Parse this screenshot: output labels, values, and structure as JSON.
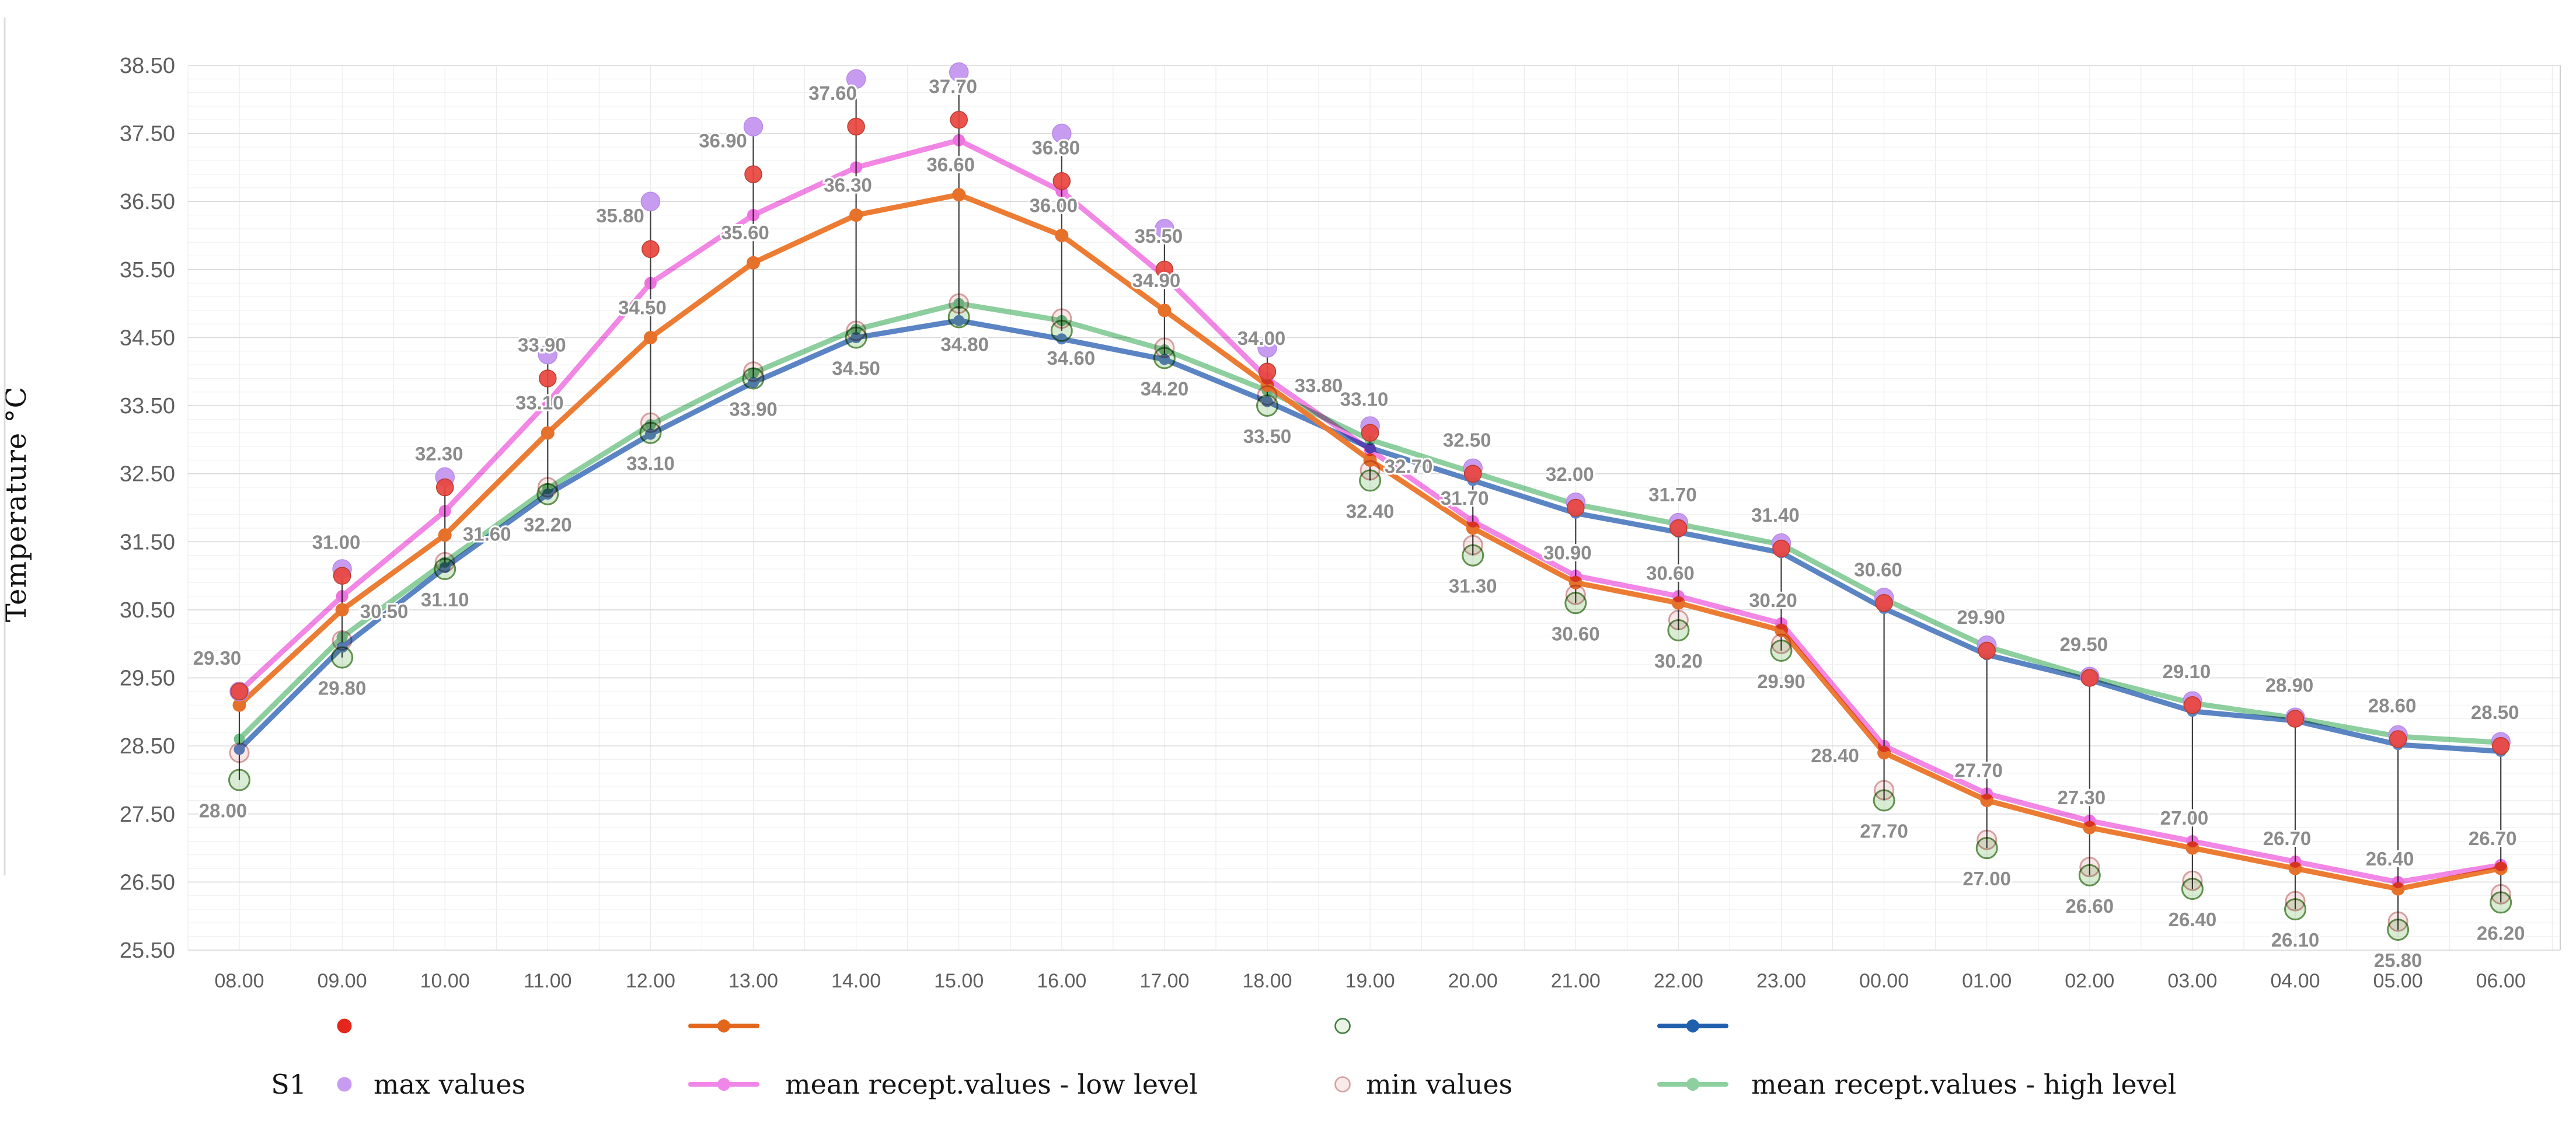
{
  "window": {
    "background": "#ffffff"
  },
  "chart_data": {
    "type": "line",
    "title": "",
    "xlabel": "",
    "ylabel": "Temperature °C",
    "ylim": [
      25.5,
      38.5
    ],
    "ytick_step": 1.0,
    "ytick_minor_step": 0.2,
    "grid": "both",
    "legend_position": "bottom",
    "yticks": [
      "38.50",
      "37.50",
      "36.50",
      "35.50",
      "34.50",
      "33.50",
      "32.50",
      "31.50",
      "30.50",
      "29.50",
      "28.50",
      "27.50",
      "26.50",
      "25.50"
    ],
    "categories": [
      "08.00",
      "09.00",
      "10.00",
      "11.00",
      "12.00",
      "13.00",
      "14.00",
      "15.00",
      "16.00",
      "17.00",
      "18.00",
      "19.00",
      "20.00",
      "21.00",
      "22.00",
      "23.00",
      "00.00",
      "01.00",
      "02.00",
      "03.00",
      "04.00",
      "05.00",
      "06.00"
    ],
    "series": [
      {
        "id": "s1_max",
        "group": "S1",
        "name": "max values",
        "kind": "points",
        "marker": "circle-filled",
        "color": "#c79cf0",
        "stroke": "#b78ae6",
        "values": [
          29.3,
          31.1,
          32.45,
          34.25,
          36.5,
          37.6,
          38.3,
          38.4,
          37.5,
          36.1,
          34.35,
          33.2,
          32.58,
          32.08,
          31.78,
          31.48,
          30.68,
          29.98,
          29.52,
          29.16,
          28.92,
          28.66,
          28.56
        ]
      },
      {
        "id": "s2_max",
        "group": "S2",
        "name": "max values",
        "kind": "points",
        "marker": "circle-filled",
        "color": "#e8453e",
        "stroke": "#b93a2e",
        "labels": "top",
        "values": [
          29.3,
          31.0,
          32.3,
          33.9,
          35.8,
          36.9,
          37.6,
          37.7,
          36.8,
          35.5,
          34.0,
          33.1,
          32.5,
          32.0,
          31.7,
          31.4,
          30.6,
          29.9,
          29.5,
          29.1,
          28.9,
          28.6,
          28.5
        ]
      },
      {
        "id": "s1_mean_low",
        "group": "S1",
        "name": "mean recept.values - low level",
        "kind": "line",
        "color": "#f287e6",
        "dot": "#ee72e0",
        "values": [
          29.3,
          30.7,
          31.95,
          33.55,
          35.3,
          36.3,
          37.0,
          37.4,
          36.65,
          35.4,
          33.9,
          32.85,
          31.8,
          31.0,
          30.7,
          30.3,
          28.5,
          27.8,
          27.4,
          27.1,
          26.8,
          26.5,
          26.75
        ]
      },
      {
        "id": "s2_mean_low",
        "group": "S2",
        "name": "mean recept.values - low level",
        "kind": "line",
        "color": "#ec7c33",
        "dot": "#e6712a",
        "labels": "mid",
        "values": [
          29.1,
          30.5,
          31.6,
          33.1,
          34.5,
          35.6,
          36.3,
          36.6,
          36.0,
          34.9,
          33.8,
          32.7,
          31.7,
          30.9,
          30.6,
          30.2,
          28.4,
          27.7,
          27.3,
          27.0,
          26.7,
          26.4,
          26.7
        ]
      },
      {
        "id": "s1_min",
        "group": "S1",
        "name": "min values",
        "kind": "points",
        "marker": "circle-open",
        "color": "#d6a0a0",
        "fill": "#f9e7e7",
        "values": [
          28.4,
          30.05,
          31.2,
          32.3,
          33.25,
          34.0,
          34.6,
          35.0,
          34.78,
          34.35,
          33.65,
          32.55,
          31.45,
          30.72,
          30.35,
          30.0,
          27.85,
          27.12,
          26.72,
          26.52,
          26.22,
          25.92,
          26.32
        ]
      },
      {
        "id": "s2_min",
        "group": "S2",
        "name": "min values",
        "kind": "points",
        "marker": "circle-open",
        "color": "#61924f",
        "fill": "#d7ebd2",
        "labels": "bottom",
        "values": [
          28.0,
          29.8,
          31.1,
          32.2,
          33.1,
          33.9,
          34.5,
          34.8,
          34.6,
          34.2,
          33.5,
          32.4,
          31.3,
          30.6,
          30.2,
          29.9,
          27.7,
          27.0,
          26.6,
          26.4,
          26.1,
          25.8,
          26.2
        ]
      },
      {
        "id": "s1_mean_high",
        "group": "S1",
        "name": "mean recept.values - high level",
        "kind": "line",
        "color": "#8ecf9f",
        "dot": "#74c08a",
        "values": [
          28.6,
          30.1,
          31.2,
          32.28,
          33.22,
          33.98,
          34.62,
          35.0,
          34.75,
          34.32,
          33.72,
          33.0,
          32.52,
          32.05,
          31.76,
          31.46,
          30.66,
          29.96,
          29.51,
          29.13,
          28.91,
          28.64,
          28.55
        ]
      },
      {
        "id": "s2_mean_high",
        "group": "S2",
        "name": "mean recept.values - high level",
        "kind": "line",
        "color": "#5b84c4",
        "dot": "#5b84c4",
        "values": [
          28.45,
          29.95,
          31.12,
          32.2,
          33.08,
          33.84,
          34.5,
          34.75,
          34.48,
          34.18,
          33.56,
          32.88,
          32.4,
          31.92,
          31.64,
          31.34,
          30.52,
          29.84,
          29.47,
          29.01,
          28.87,
          28.52,
          28.42
        ]
      }
    ],
    "point_labels": {
      "top": [
        "29.30",
        "31.00",
        "32.30",
        "33.90",
        "35.80",
        "36.90",
        "37.60",
        "37.70",
        "36.80",
        "35.50",
        "34.00",
        "33.10",
        "32.50",
        "32.00",
        "31.70",
        "31.40",
        "30.60",
        "29.90",
        "29.50",
        "29.10",
        "28.90",
        "28.60",
        "28.50"
      ],
      "mid": [
        "",
        "30.50",
        "31.60",
        "33.10",
        "34.50",
        "35.60",
        "36.30",
        "36.60",
        "36.00",
        "34.90",
        "33.80",
        "32.70",
        "31.70",
        "30.90",
        "30.60",
        "30.20",
        "28.40",
        "27.70",
        "27.30",
        "27.00",
        "26.70",
        "26.40",
        "26.70"
      ],
      "bottom": [
        "28.00",
        "29.80",
        "31.10",
        "32.20",
        "33.10",
        "33.90",
        "34.50",
        "34.80",
        "34.60",
        "34.20",
        "33.50",
        "32.40",
        "31.30",
        "30.60",
        "30.20",
        "29.90",
        "27.70",
        "27.00",
        "26.60",
        "26.40",
        "26.10",
        "25.80",
        "26.20"
      ]
    },
    "connectors": true
  },
  "legend": {
    "rows": [
      {
        "label": "",
        "items": [
          {
            "icon": "dot",
            "color": "#e4261c",
            "text": ""
          },
          {
            "icon": "line-dot",
            "color": "#e2661b",
            "text": ""
          },
          {
            "icon": "circle-open",
            "color": "#3f7d3f",
            "fill": "#eaf4e6",
            "text": ""
          },
          {
            "icon": "line-dot",
            "color": "#1f5fae",
            "text": ""
          }
        ]
      },
      {
        "label": "S1",
        "items": [
          {
            "icon": "dot",
            "color": "#c79cf0",
            "text": "max values"
          },
          {
            "icon": "line-dot",
            "color": "#f087e8",
            "text": "mean recept.values - low level"
          },
          {
            "icon": "circle-open",
            "color": "#d6a0a0",
            "fill": "#fbeaea",
            "text": "min values"
          },
          {
            "icon": "line-dot",
            "color": "#8ecf9f",
            "text": "mean recept.values - high level"
          }
        ]
      }
    ]
  }
}
